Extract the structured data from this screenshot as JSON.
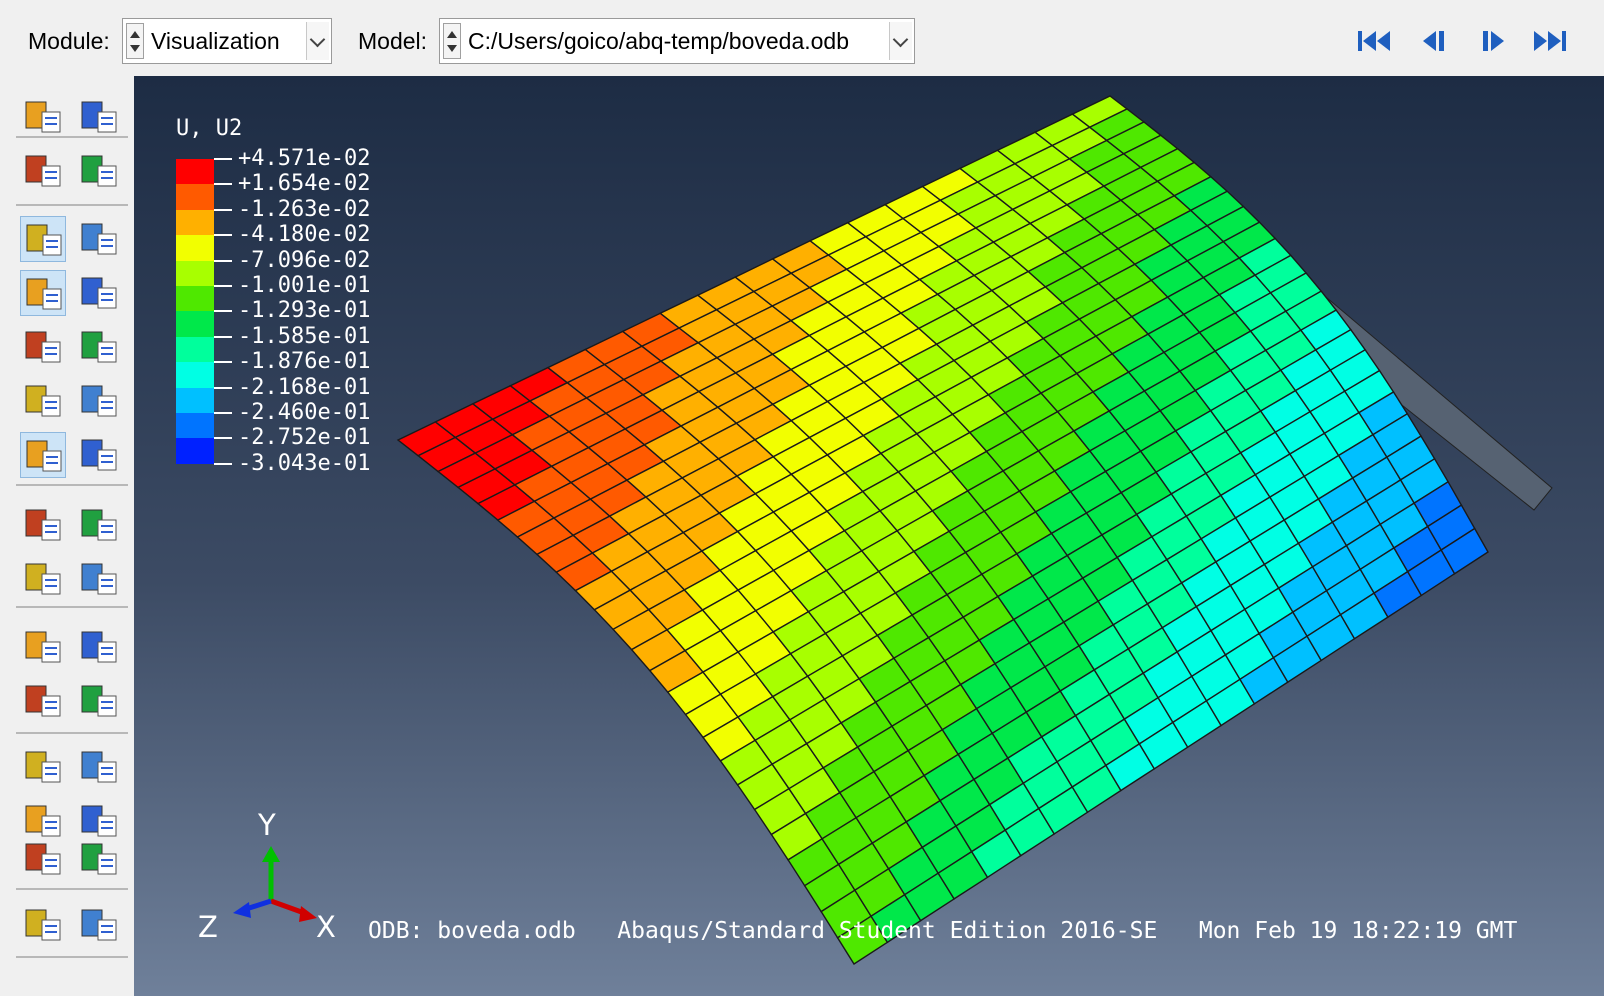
{
  "toolbar": {
    "module_label": "Module:",
    "module_value": "Visualization",
    "model_label": "Model:",
    "model_value": "C:/Users/goico/abq-temp/boveda.odb",
    "playback_color": "#1f5fbf"
  },
  "toolbox": {
    "tools": [
      {
        "name": "common-plot-options-icon"
      },
      {
        "name": "viewport-annotation-icon"
      },
      {
        "name": "view-cut-icon"
      },
      {
        "name": "color-code-icon"
      },
      {
        "name": "plot-undeformed-icon"
      },
      {
        "name": "plot-deformed-icon"
      },
      {
        "name": "plot-contours-icon"
      },
      {
        "name": "contour-options-icon"
      },
      {
        "name": "plot-symbols-icon"
      },
      {
        "name": "symbol-options-icon"
      },
      {
        "name": "plot-material-orientations-icon"
      },
      {
        "name": "orientation-options-icon"
      },
      {
        "name": "allow-multiple-plots-icon"
      },
      {
        "name": "superimpose-options-icon"
      },
      {
        "name": "animate-scale-factor-icon"
      },
      {
        "name": "animate-time-history-icon"
      },
      {
        "name": "animate-harmonic-icon"
      },
      {
        "name": "animation-options-icon"
      },
      {
        "name": "query-icon"
      },
      {
        "name": "report-field-output-icon"
      },
      {
        "name": "xy-data-manager-icon"
      },
      {
        "name": "report-xy-icon"
      },
      {
        "name": "create-path-icon"
      },
      {
        "name": "create-xy-data-icon"
      },
      {
        "name": "display-group-icon"
      },
      {
        "name": "display-group-manager-icon"
      },
      {
        "name": "create-section-icon"
      },
      {
        "name": "section-manager-icon"
      },
      {
        "name": "stream-icon"
      },
      {
        "name": "stream-manager-icon"
      }
    ]
  },
  "legend": {
    "title": "U, U2",
    "labels": [
      "+4.571e-02",
      "+1.654e-02",
      "-1.263e-02",
      "-4.180e-02",
      "-7.096e-02",
      "-1.001e-01",
      "-1.293e-01",
      "-1.585e-01",
      "-1.876e-01",
      "-2.168e-01",
      "-2.460e-01",
      "-2.752e-01",
      "-3.043e-01"
    ],
    "colors": [
      "#ff0000",
      "#ff5a00",
      "#ffb000",
      "#f2ff00",
      "#a8ff00",
      "#4fe800",
      "#00e84a",
      "#00ff9c",
      "#00ffe4",
      "#00c0ff",
      "#0074ff",
      "#0021ff"
    ]
  },
  "triad": {
    "y": "Y",
    "z": "Z",
    "x": "X"
  },
  "footer": {
    "odb": "ODB: boveda.odb",
    "edition": "Abaqus/Standard Student Edition 2016-SE",
    "timestamp": "Mon Feb 19 18:22:19 GMT"
  }
}
